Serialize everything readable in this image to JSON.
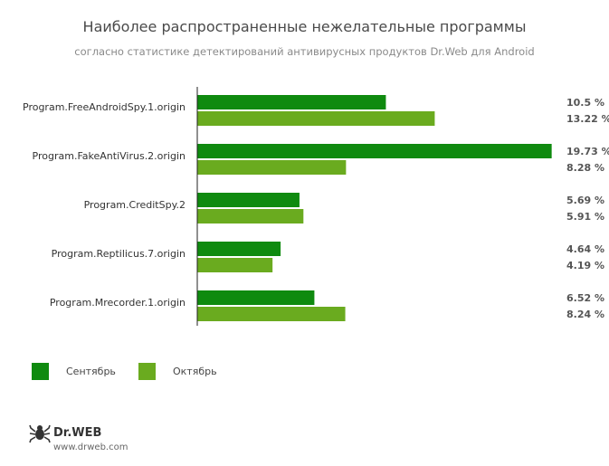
{
  "chart_data": {
    "type": "bar",
    "orientation": "horizontal",
    "title": "Наиболее распространенные нежелательные программы",
    "subtitle": "согласно статистике детектирований антивирусных продуктов Dr.Web для Android",
    "categories": [
      "Program.FreeAndroidSpy.1.origin",
      "Program.FakeAntiVirus.2.origin",
      "Program.CreditSpy.2",
      "Program.Reptilicus.7.origin",
      "Program.Mrecorder.1.origin"
    ],
    "series": [
      {
        "name": "Сентябрь",
        "color": "#0f8a0f",
        "values": [
          10.5,
          19.73,
          5.69,
          4.64,
          6.52
        ],
        "labels": [
          "10.5 %",
          "19.73 %",
          "5.69 %",
          "4.64 %",
          "6.52 %"
        ]
      },
      {
        "name": "Октябрь",
        "color": "#6aab1f",
        "values": [
          13.22,
          8.28,
          5.91,
          4.19,
          8.24
        ],
        "labels": [
          "13.22 %",
          "8.28 %",
          "5.91 %",
          "4.19 %",
          "8.24 %"
        ]
      }
    ],
    "xlim": [
      0,
      20
    ],
    "grid": false,
    "legend_position": "bottom-left"
  },
  "brand": {
    "name": "Dr.WEB",
    "url": "www.drweb.com",
    "icon": "spider-logo-icon"
  }
}
